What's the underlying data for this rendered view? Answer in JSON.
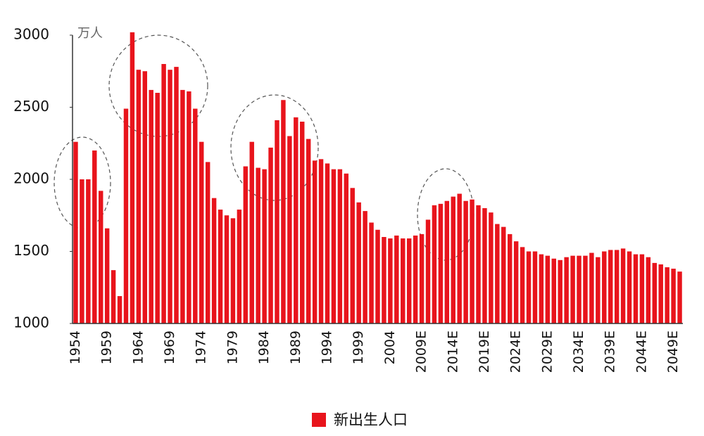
{
  "chart_data": {
    "type": "bar",
    "y_unit": "万人",
    "legend_label": "新出生人口",
    "color": "#e8141c",
    "categories": [
      "1954",
      null,
      null,
      null,
      null,
      "1959",
      null,
      null,
      null,
      null,
      "1964",
      null,
      null,
      null,
      null,
      "1969",
      null,
      null,
      null,
      null,
      "1974",
      null,
      null,
      null,
      null,
      "1979",
      null,
      null,
      null,
      null,
      "1984",
      null,
      null,
      null,
      null,
      "1989",
      null,
      null,
      null,
      null,
      "1994",
      null,
      null,
      null,
      null,
      "1999",
      null,
      null,
      null,
      null,
      "2004",
      null,
      null,
      null,
      null,
      "2009E",
      null,
      null,
      null,
      null,
      "2014E",
      null,
      null,
      null,
      null,
      "2019E",
      null,
      null,
      null,
      null,
      "2024E",
      null,
      null,
      null,
      null,
      "2029E",
      null,
      null,
      null,
      null,
      "2034E",
      null,
      null,
      null,
      null,
      "2039E",
      null,
      null,
      null,
      null,
      "2044E",
      null,
      null,
      null,
      null,
      "2049E",
      null
    ],
    "values": [
      2260,
      2000,
      2000,
      2200,
      1920,
      1660,
      1370,
      1190,
      2490,
      3020,
      2760,
      2750,
      2620,
      2600,
      2800,
      2760,
      2780,
      2620,
      2610,
      2490,
      2260,
      2120,
      1870,
      1790,
      1750,
      1730,
      1790,
      2090,
      2260,
      2080,
      2070,
      2220,
      2410,
      2550,
      2300,
      2430,
      2400,
      2280,
      2130,
      2140,
      2110,
      2070,
      2070,
      2040,
      1940,
      1840,
      1780,
      1700,
      1650,
      1600,
      1590,
      1610,
      1590,
      1590,
      1610,
      1620,
      1720,
      1820,
      1830,
      1850,
      1880,
      1900,
      1850,
      1860,
      1820,
      1800,
      1770,
      1690,
      1670,
      1620,
      1570,
      1530,
      1500,
      1500,
      1480,
      1470,
      1450,
      1440,
      1460,
      1470,
      1470,
      1470,
      1490,
      1460,
      1500,
      1510,
      1510,
      1520,
      1500,
      1480,
      1480,
      1460,
      1420,
      1410,
      1390,
      1380,
      1360
    ],
    "ylim": [
      1000,
      3000
    ],
    "yticks": [
      1000,
      1500,
      2000,
      2500,
      3000
    ]
  }
}
